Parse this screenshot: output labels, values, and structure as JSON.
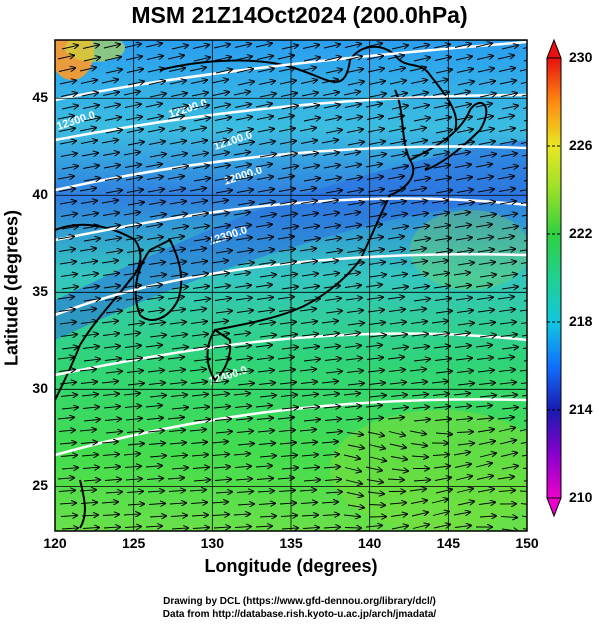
{
  "title": "MSM 21Z14Oct2024 (200.0hPa)",
  "x_axis": {
    "label": "Longitude (degrees)",
    "ticks": [
      120,
      125,
      130,
      135,
      140,
      145,
      150
    ]
  },
  "y_axis": {
    "label": "Latitude  (degrees)",
    "ticks": [
      25,
      30,
      35,
      40,
      45
    ]
  },
  "colorbar": {
    "ticks": [
      210,
      214,
      218,
      222,
      226,
      230
    ],
    "min": 210,
    "max": 230
  },
  "contour_labels": [
    "12300.0",
    "12200.0",
    "12100.0",
    "12000.0",
    "12300.0",
    "12400.0"
  ],
  "credits": [
    "Drawing by DCL (https://www.gfd-dennou.org/library/dcl/)",
    "Data from http://database.rish.kyoto-u.ac.jp/arch/jmadata/"
  ],
  "colors": {
    "warm_west": "#ff9a2a",
    "cool_band": "#2f7fe0",
    "south_green": "#3cd84a",
    "wind_vector": "#000000",
    "contour": "#ffffff"
  }
}
